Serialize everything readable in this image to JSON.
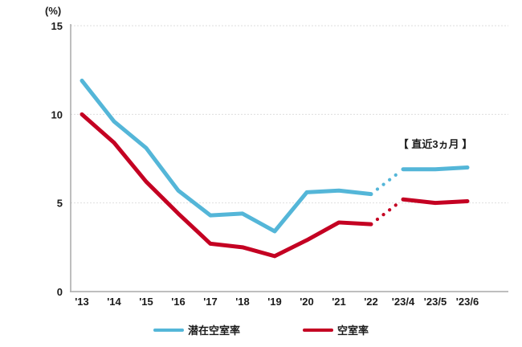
{
  "chart_data": {
    "type": "line",
    "title": "",
    "unit_label": "(%)",
    "xlabel": "",
    "ylabel": "(%)",
    "ylim": [
      0,
      15
    ],
    "y_ticks": [
      0,
      5,
      10,
      15
    ],
    "grid": "horizontal-dashed",
    "legend_position": "bottom",
    "annotation": "【 直近3ヵ月 】",
    "categories": [
      "'13",
      "'14",
      "'15",
      "'16",
      "'17",
      "'18",
      "'19",
      "'20",
      "'21",
      "'22",
      "'23/4",
      "'23/5",
      "'23/6"
    ],
    "series": [
      {
        "id": "potential-vacancy-rate",
        "name": "潜在空室率",
        "color": "#54b6d8",
        "values": [
          11.9,
          9.6,
          8.1,
          5.7,
          4.3,
          4.4,
          3.4,
          5.6,
          5.7,
          5.5,
          6.9,
          6.9,
          7.0
        ]
      },
      {
        "id": "vacancy-rate",
        "name": "空室率",
        "color": "#c40022",
        "values": [
          10.0,
          8.4,
          6.2,
          4.4,
          2.7,
          2.5,
          2.0,
          2.9,
          3.9,
          3.8,
          5.2,
          5.0,
          5.1
        ]
      }
    ],
    "dotted_between_indices": [
      9,
      10
    ],
    "axis_color": "#a8a8a8",
    "gridline_color": "#dedede"
  }
}
